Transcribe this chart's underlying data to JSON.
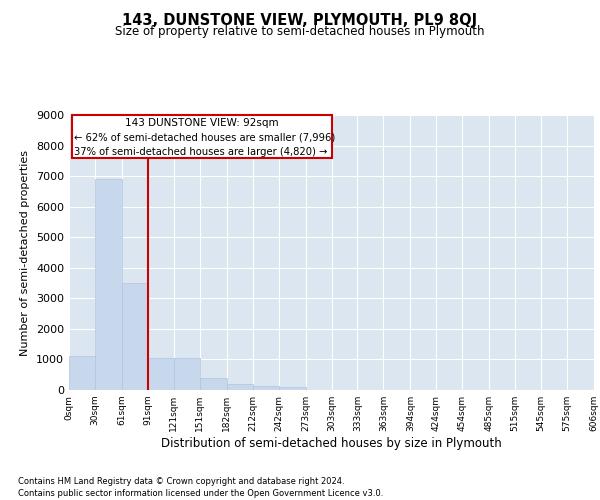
{
  "title": "143, DUNSTONE VIEW, PLYMOUTH, PL9 8QJ",
  "subtitle": "Size of property relative to semi-detached houses in Plymouth",
  "xlabel": "Distribution of semi-detached houses by size in Plymouth",
  "ylabel": "Number of semi-detached properties",
  "bar_color": "#c8d8ec",
  "bar_edge_color": "#b0c4de",
  "background_color": "#dce6f0",
  "grid_color": "#ffffff",
  "annotation_box_color": "#cc0000",
  "property_line_color": "#cc0000",
  "property_line_x": 91,
  "annotation_text_line1": "143 DUNSTONE VIEW: 92sqm",
  "annotation_text_line2": "← 62% of semi-detached houses are smaller (7,996)",
  "annotation_text_line3": "37% of semi-detached houses are larger (4,820) →",
  "bin_edges": [
    0,
    30,
    61,
    91,
    121,
    151,
    182,
    212,
    242,
    273,
    303,
    333,
    363,
    394,
    424,
    454,
    485,
    515,
    545,
    575,
    606
  ],
  "bar_heights": [
    1100,
    6900,
    3500,
    1050,
    1050,
    400,
    200,
    130,
    90,
    0,
    0,
    0,
    0,
    0,
    0,
    0,
    0,
    0,
    0,
    0
  ],
  "ylim": [
    0,
    9000
  ],
  "yticks": [
    0,
    1000,
    2000,
    3000,
    4000,
    5000,
    6000,
    7000,
    8000,
    9000
  ],
  "footer_text1": "Contains HM Land Registry data © Crown copyright and database right 2024.",
  "footer_text2": "Contains public sector information licensed under the Open Government Licence v3.0.",
  "tick_labels": [
    "0sqm",
    "30sqm",
    "61sqm",
    "91sqm",
    "121sqm",
    "151sqm",
    "182sqm",
    "212sqm",
    "242sqm",
    "273sqm",
    "303sqm",
    "333sqm",
    "363sqm",
    "394sqm",
    "424sqm",
    "454sqm",
    "485sqm",
    "515sqm",
    "545sqm",
    "575sqm",
    "606sqm"
  ]
}
